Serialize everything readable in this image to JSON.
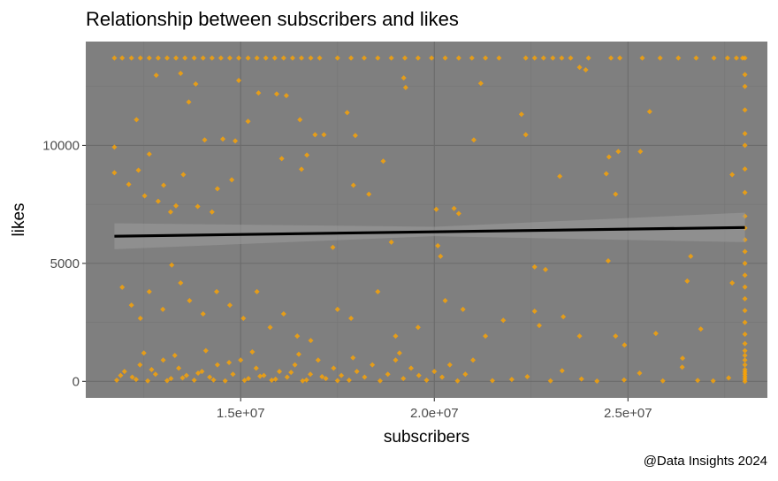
{
  "chart_data": {
    "type": "scatter",
    "title": "Relationship between subscribers and likes",
    "caption": "@Data Insights 2024",
    "xlabel": "subscribers",
    "ylabel": "likes",
    "xlim": [
      11000000,
      28600000
    ],
    "ylim": [
      -700,
      14400
    ],
    "x_ticks": [
      {
        "value": 15000000,
        "label": "1.5e+07"
      },
      {
        "value": 20000000,
        "label": "2.0e+07"
      },
      {
        "value": 25000000,
        "label": "2.5e+07"
      }
    ],
    "y_ticks": [
      {
        "value": 0,
        "label": "0"
      },
      {
        "value": 5000,
        "label": "5000"
      },
      {
        "value": 10000,
        "label": "10000"
      }
    ],
    "grid": true,
    "theme": "dark",
    "colors": {
      "panel": "#7f7f7f",
      "grid_major": "#6b6b6b",
      "grid_minor": "#767676",
      "points": "#FFA500",
      "trend": "#000000",
      "ci_band": "#999999"
    },
    "points": [
      [
        11740000.0,
        13700
      ],
      [
        11940000.0,
        13700
      ],
      [
        12180000.0,
        13700
      ],
      [
        12410000.0,
        13700
      ],
      [
        12640000.0,
        13700
      ],
      [
        12870000.0,
        13700
      ],
      [
        13100000.0,
        13700
      ],
      [
        13330000.0,
        13700
      ],
      [
        13560000.0,
        13700
      ],
      [
        13800000.0,
        13700
      ],
      [
        14030000.0,
        13700
      ],
      [
        14260000.0,
        13700
      ],
      [
        14490000.0,
        13700
      ],
      [
        14720000.0,
        13700
      ],
      [
        14950000.0,
        13700
      ],
      [
        15190000.0,
        13700
      ],
      [
        15420000.0,
        13700
      ],
      [
        15650000.0,
        13700
      ],
      [
        15880000.0,
        13700
      ],
      [
        16110000.0,
        13700
      ],
      [
        16340000.0,
        13700
      ],
      [
        16570000.0,
        13700
      ],
      [
        16810000.0,
        13700
      ],
      [
        17040000.0,
        13700
      ],
      [
        17500000.0,
        13700
      ],
      [
        17850000.0,
        13700
      ],
      [
        18190000.0,
        13700
      ],
      [
        18540000.0,
        13700
      ],
      [
        18890000.0,
        13700
      ],
      [
        19240000.0,
        13700
      ],
      [
        19580000.0,
        13700
      ],
      [
        19930000.0,
        13700
      ],
      [
        20280000.0,
        13700
      ],
      [
        20630000.0,
        13700
      ],
      [
        20970000.0,
        13700
      ],
      [
        21320000.0,
        13700
      ],
      [
        21670000.0,
        13700
      ],
      [
        22360000.0,
        13700
      ],
      [
        22590000.0,
        13700
      ],
      [
        22820000.0,
        13700
      ],
      [
        23060000.0,
        13700
      ],
      [
        23290000.0,
        13700
      ],
      [
        23520000.0,
        13700
      ],
      [
        23980000.0,
        13700
      ],
      [
        24560000.0,
        13700
      ],
      [
        24790000.0,
        13700
      ],
      [
        25370000.0,
        13700
      ],
      [
        25830000.0,
        13700
      ],
      [
        26300000.0,
        13700
      ],
      [
        26760000.0,
        13700
      ],
      [
        27220000.0,
        13700
      ],
      [
        27570000.0,
        13700
      ],
      [
        27800000.0,
        13700
      ],
      [
        27960000.0,
        13700
      ],
      [
        28020000.0,
        0
      ],
      [
        28020000.0,
        100
      ],
      [
        28020000.0,
        200
      ],
      [
        28020000.0,
        300
      ],
      [
        28020000.0,
        400
      ],
      [
        28020000.0,
        500
      ],
      [
        28020000.0,
        700
      ],
      [
        28020000.0,
        900
      ],
      [
        28020000.0,
        1100
      ],
      [
        28020000.0,
        1300
      ],
      [
        28020000.0,
        1600
      ],
      [
        28020000.0,
        2000
      ],
      [
        28020000.0,
        2500
      ],
      [
        28020000.0,
        3000
      ],
      [
        28020000.0,
        3500
      ],
      [
        28020000.0,
        4000
      ],
      [
        28020000.0,
        4500
      ],
      [
        28020000.0,
        5000
      ],
      [
        28020000.0,
        5500
      ],
      [
        28020000.0,
        6000
      ],
      [
        28020000.0,
        6500
      ],
      [
        28020000.0,
        7000
      ],
      [
        28020000.0,
        8000
      ],
      [
        28020000.0,
        9000
      ],
      [
        28020000.0,
        10000
      ],
      [
        28020000.0,
        10500
      ],
      [
        28020000.0,
        11500
      ],
      [
        28020000.0,
        12500
      ],
      [
        28020000.0,
        13000
      ],
      [
        28020000.0,
        13700
      ],
      [
        11740000.0,
        9925
      ],
      [
        11740000.0,
        8840
      ],
      [
        12110000.0,
        8350
      ],
      [
        12310000.0,
        11090
      ],
      [
        12360000.0,
        8950
      ],
      [
        12520000.0,
        7860
      ],
      [
        12640000.0,
        9630
      ],
      [
        12820000.0,
        12970
      ],
      [
        12870000.0,
        7630
      ],
      [
        13010000.0,
        8310
      ],
      [
        13190000.0,
        7180
      ],
      [
        13330000.0,
        7440
      ],
      [
        13450000.0,
        13050
      ],
      [
        13520000.0,
        8760
      ],
      [
        13660000.0,
        11840
      ],
      [
        13840000.0,
        12600
      ],
      [
        13890000.0,
        7410
      ],
      [
        14070000.0,
        10230
      ],
      [
        14260000.0,
        7180
      ],
      [
        14400000.0,
        8160
      ],
      [
        14540000.0,
        10270
      ],
      [
        14770000.0,
        8540
      ],
      [
        14860000.0,
        10190
      ],
      [
        14950000.0,
        12750
      ],
      [
        15190000.0,
        11020
      ],
      [
        15460000.0,
        12220
      ],
      [
        15930000.0,
        12180
      ],
      [
        16060000.0,
        9440
      ],
      [
        16180000.0,
        12110
      ],
      [
        16530000.0,
        11090
      ],
      [
        16710000.0,
        9590
      ],
      [
        16920000.0,
        10450
      ],
      [
        16570000.0,
        8990
      ],
      [
        17150000.0,
        10450
      ],
      [
        17380000.0,
        5680
      ],
      [
        17750000.0,
        11390
      ],
      [
        17910000.0,
        8310
      ],
      [
        17960000.0,
        10420
      ],
      [
        18310000.0,
        7930
      ],
      [
        18680000.0,
        9330
      ],
      [
        19260000.0,
        12450
      ],
      [
        19210000.0,
        12860
      ],
      [
        18890000.0,
        5900
      ],
      [
        20050000.0,
        7290
      ],
      [
        20510000.0,
        7330
      ],
      [
        20630000.0,
        7110
      ],
      [
        20090000.0,
        5750
      ],
      [
        20160000.0,
        5300
      ],
      [
        21020000.0,
        10230
      ],
      [
        21200000.0,
        12630
      ],
      [
        22250000.0,
        11320
      ],
      [
        22360000.0,
        10450
      ],
      [
        22590000.0,
        4850
      ],
      [
        22870000.0,
        4740
      ],
      [
        23240000.0,
        8690
      ],
      [
        23750000.0,
        13310
      ],
      [
        23910000.0,
        13200
      ],
      [
        24510000.0,
        9510
      ],
      [
        24750000.0,
        9740
      ],
      [
        24440000.0,
        8800
      ],
      [
        24680000.0,
        7930
      ],
      [
        24490000.0,
        5110
      ],
      [
        25560000.0,
        11430
      ],
      [
        25320000.0,
        9740
      ],
      [
        26530000.0,
        4250
      ],
      [
        26620000.0,
        5300
      ],
      [
        27690000.0,
        8760
      ],
      [
        11940000.0,
        3990
      ],
      [
        12180000.0,
        3230
      ],
      [
        12410000.0,
        2670
      ],
      [
        12640000.0,
        3800
      ],
      [
        12990000.0,
        3050
      ],
      [
        13220000.0,
        4930
      ],
      [
        13450000.0,
        4170
      ],
      [
        13680000.0,
        3420
      ],
      [
        14030000.0,
        2860
      ],
      [
        14380000.0,
        3800
      ],
      [
        14720000.0,
        3230
      ],
      [
        15070000.0,
        2670
      ],
      [
        15420000.0,
        3800
      ],
      [
        15760000.0,
        2290
      ],
      [
        16110000.0,
        2860
      ],
      [
        16460000.0,
        1920
      ],
      [
        16810000.0,
        1730
      ],
      [
        17500000.0,
        3050
      ],
      [
        17850000.0,
        2670
      ],
      [
        18540000.0,
        3800
      ],
      [
        19000000.0,
        1920
      ],
      [
        19580000.0,
        2290
      ],
      [
        20280000.0,
        3420
      ],
      [
        20740000.0,
        3050
      ],
      [
        21320000.0,
        1920
      ],
      [
        21780000.0,
        2590
      ],
      [
        22590000.0,
        2970
      ],
      [
        22710000.0,
        2370
      ],
      [
        23330000.0,
        2740
      ],
      [
        23750000.0,
        1920
      ],
      [
        24680000.0,
        1920
      ],
      [
        24910000.0,
        1540
      ],
      [
        25720000.0,
        2030
      ],
      [
        26410000.0,
        980
      ],
      [
        26880000.0,
        2220
      ],
      [
        27690000.0,
        4170
      ],
      [
        11800000.0,
        50
      ],
      [
        12000000.0,
        420
      ],
      [
        12200000.0,
        180
      ],
      [
        12400000.0,
        700
      ],
      [
        12600000.0,
        20
      ],
      [
        12800000.0,
        300
      ],
      [
        13000000.0,
        900
      ],
      [
        13200000.0,
        120
      ],
      [
        13400000.0,
        560
      ],
      [
        13600000.0,
        250
      ],
      [
        13800000.0,
        50
      ],
      [
        14000000.0,
        420
      ],
      [
        14200000.0,
        180
      ],
      [
        14400000.0,
        700
      ],
      [
        14600000.0,
        20
      ],
      [
        14800000.0,
        300
      ],
      [
        15000000.0,
        900
      ],
      [
        15200000.0,
        120
      ],
      [
        15400000.0,
        560
      ],
      [
        15600000.0,
        250
      ],
      [
        15800000.0,
        50
      ],
      [
        16000000.0,
        420
      ],
      [
        16200000.0,
        180
      ],
      [
        16400000.0,
        700
      ],
      [
        16600000.0,
        20
      ],
      [
        16800000.0,
        300
      ],
      [
        17000000.0,
        900
      ],
      [
        17200000.0,
        120
      ],
      [
        17400000.0,
        560
      ],
      [
        17600000.0,
        250
      ],
      [
        17800000.0,
        50
      ],
      [
        18000000.0,
        420
      ],
      [
        18200000.0,
        180
      ],
      [
        18400000.0,
        700
      ],
      [
        18600000.0,
        20
      ],
      [
        18800000.0,
        300
      ],
      [
        19000000.0,
        900
      ],
      [
        19200000.0,
        120
      ],
      [
        19400000.0,
        560
      ],
      [
        19600000.0,
        250
      ],
      [
        19800000.0,
        50
      ],
      [
        20000000.0,
        420
      ],
      [
        20200000.0,
        180
      ],
      [
        20400000.0,
        700
      ],
      [
        20600000.0,
        20
      ],
      [
        20800000.0,
        300
      ],
      [
        21000000.0,
        900
      ],
      [
        11900000.0,
        250
      ],
      [
        12300000.0,
        80
      ],
      [
        12700000.0,
        500
      ],
      [
        13100000.0,
        30
      ],
      [
        13500000.0,
        150
      ],
      [
        13900000.0,
        350
      ],
      [
        14300000.0,
        60
      ],
      [
        14700000.0,
        800
      ],
      [
        15100000.0,
        40
      ],
      [
        15500000.0,
        220
      ],
      [
        15900000.0,
        90
      ],
      [
        16300000.0,
        380
      ],
      [
        16700000.0,
        60
      ],
      [
        17100000.0,
        200
      ],
      [
        17500000.0,
        30
      ],
      [
        12500000.0,
        1200
      ],
      [
        13300000.0,
        1100
      ],
      [
        14100000.0,
        1300
      ],
      [
        15300000.0,
        1250
      ],
      [
        16500000.0,
        1150
      ],
      [
        17900000.0,
        1000
      ],
      [
        19100000.0,
        1200
      ],
      [
        21500000.0,
        30
      ],
      [
        22000000.0,
        80
      ],
      [
        22400000.0,
        200
      ],
      [
        23000000.0,
        20
      ],
      [
        23300000.0,
        450
      ],
      [
        23800000.0,
        100
      ],
      [
        24200000.0,
        10
      ],
      [
        24900000.0,
        60
      ],
      [
        25300000.0,
        350
      ],
      [
        25900000.0,
        20
      ],
      [
        26400000.0,
        600
      ],
      [
        26800000.0,
        40
      ],
      [
        27200000.0,
        20
      ],
      [
        27600000.0,
        150
      ]
    ],
    "trend": {
      "method": "lm",
      "x": [
        11740000.0,
        28020000.0
      ],
      "y": [
        6150,
        6520
      ]
    },
    "ci": {
      "x": [
        11740000.0,
        20000000.0,
        28020000.0
      ],
      "lower": [
        5600,
        6150,
        5900
      ],
      "upper": [
        6700,
        6550,
        7150
      ]
    }
  }
}
